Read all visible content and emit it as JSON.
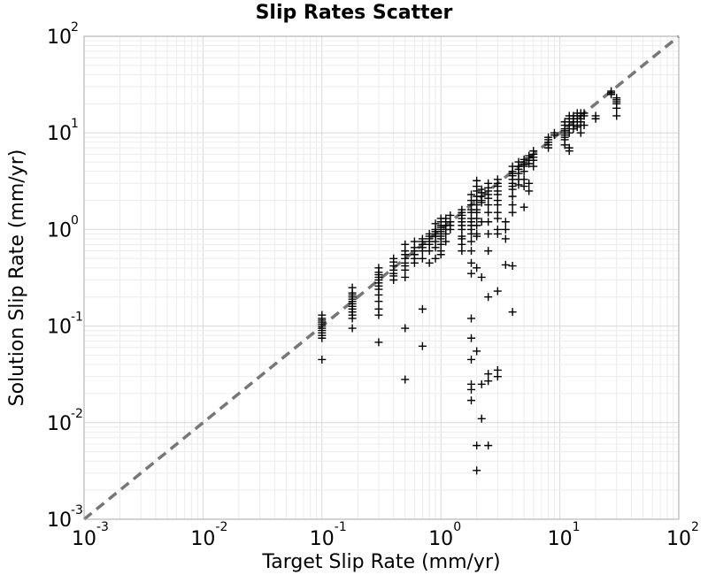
{
  "chart_data": {
    "type": "scatter",
    "title": "Slip Rates Scatter",
    "xlabel": "Target Slip Rate (mm/yr)",
    "ylabel": "Solution Slip Rate (mm/yr)",
    "xscale": "log",
    "yscale": "log",
    "xlim": [
      0.001,
      100
    ],
    "ylim": [
      0.001,
      100
    ],
    "grid": true,
    "x_ticks": [
      {
        "base": "10",
        "exp": "-3"
      },
      {
        "base": "10",
        "exp": "-2"
      },
      {
        "base": "10",
        "exp": "-1"
      },
      {
        "base": "10",
        "exp": "0"
      },
      {
        "base": "10",
        "exp": "1"
      },
      {
        "base": "10",
        "exp": "2"
      }
    ],
    "y_ticks": [
      {
        "base": "10",
        "exp": "-3"
      },
      {
        "base": "10",
        "exp": "-2"
      },
      {
        "base": "10",
        "exp": "-1"
      },
      {
        "base": "10",
        "exp": "0"
      },
      {
        "base": "10",
        "exp": "1"
      },
      {
        "base": "10",
        "exp": "2"
      }
    ],
    "reference_line": {
      "style": "dashed",
      "color": "#777777",
      "from": [
        0.001,
        0.001
      ],
      "to": [
        100,
        100
      ]
    },
    "marker": "+",
    "marker_color": "#000000",
    "points": [
      [
        0.1,
        0.1
      ],
      [
        0.1,
        0.095
      ],
      [
        0.1,
        0.09
      ],
      [
        0.1,
        0.085
      ],
      [
        0.1,
        0.08
      ],
      [
        0.1,
        0.105
      ],
      [
        0.1,
        0.11
      ],
      [
        0.1,
        0.115
      ],
      [
        0.1,
        0.12
      ],
      [
        0.1,
        0.13
      ],
      [
        0.1,
        0.075
      ],
      [
        0.1,
        0.045
      ],
      [
        0.18,
        0.18
      ],
      [
        0.18,
        0.17
      ],
      [
        0.18,
        0.16
      ],
      [
        0.18,
        0.15
      ],
      [
        0.18,
        0.19
      ],
      [
        0.18,
        0.2
      ],
      [
        0.18,
        0.21
      ],
      [
        0.18,
        0.22
      ],
      [
        0.18,
        0.14
      ],
      [
        0.18,
        0.13
      ],
      [
        0.18,
        0.12
      ],
      [
        0.18,
        0.095
      ],
      [
        0.18,
        0.25
      ],
      [
        0.3,
        0.3
      ],
      [
        0.3,
        0.28
      ],
      [
        0.3,
        0.26
      ],
      [
        0.3,
        0.24
      ],
      [
        0.3,
        0.32
      ],
      [
        0.3,
        0.34
      ],
      [
        0.3,
        0.36
      ],
      [
        0.3,
        0.4
      ],
      [
        0.3,
        0.21
      ],
      [
        0.3,
        0.18
      ],
      [
        0.3,
        0.15
      ],
      [
        0.3,
        0.13
      ],
      [
        0.3,
        0.068
      ],
      [
        0.4,
        0.35
      ],
      [
        0.4,
        0.38
      ],
      [
        0.4,
        0.42
      ],
      [
        0.4,
        0.46
      ],
      [
        0.4,
        0.5
      ],
      [
        0.4,
        0.33
      ],
      [
        0.4,
        0.3
      ],
      [
        0.5,
        0.5
      ],
      [
        0.5,
        0.45
      ],
      [
        0.5,
        0.42
      ],
      [
        0.5,
        0.55
      ],
      [
        0.5,
        0.6
      ],
      [
        0.5,
        0.7
      ],
      [
        0.5,
        0.38
      ],
      [
        0.5,
        0.32
      ],
      [
        0.5,
        0.095
      ],
      [
        0.5,
        0.028
      ],
      [
        0.6,
        0.55
      ],
      [
        0.6,
        0.6
      ],
      [
        0.6,
        0.65
      ],
      [
        0.6,
        0.5
      ],
      [
        0.6,
        0.45
      ],
      [
        0.6,
        0.75
      ],
      [
        0.7,
        0.65
      ],
      [
        0.7,
        0.7
      ],
      [
        0.7,
        0.75
      ],
      [
        0.7,
        0.6
      ],
      [
        0.7,
        0.8
      ],
      [
        0.7,
        0.5
      ],
      [
        0.7,
        0.15
      ],
      [
        0.7,
        0.062
      ],
      [
        0.8,
        0.75
      ],
      [
        0.8,
        0.8
      ],
      [
        0.8,
        0.85
      ],
      [
        0.8,
        0.7
      ],
      [
        0.8,
        0.9
      ],
      [
        0.8,
        0.6
      ],
      [
        0.8,
        0.45
      ],
      [
        0.9,
        0.9
      ],
      [
        0.9,
        0.85
      ],
      [
        0.9,
        0.95
      ],
      [
        0.9,
        1.0
      ],
      [
        0.9,
        0.75
      ],
      [
        0.9,
        0.65
      ],
      [
        0.9,
        1.15
      ],
      [
        0.9,
        0.5
      ],
      [
        1.0,
        1.0
      ],
      [
        1.0,
        0.95
      ],
      [
        1.0,
        1.05
      ],
      [
        1.0,
        1.1
      ],
      [
        1.0,
        0.9
      ],
      [
        1.0,
        0.85
      ],
      [
        1.0,
        0.8
      ],
      [
        1.0,
        1.2
      ],
      [
        1.0,
        1.3
      ],
      [
        1.0,
        0.7
      ],
      [
        1.0,
        0.6
      ],
      [
        1.0,
        0.55
      ],
      [
        1.1,
        1.1
      ],
      [
        1.1,
        1.0
      ],
      [
        1.1,
        1.2
      ],
      [
        1.1,
        0.9
      ],
      [
        1.1,
        1.3
      ],
      [
        1.1,
        0.75
      ],
      [
        1.2,
        1.2
      ],
      [
        1.2,
        1.1
      ],
      [
        1.2,
        1.0
      ],
      [
        1.2,
        1.4
      ],
      [
        1.5,
        1.5
      ],
      [
        1.5,
        1.4
      ],
      [
        1.5,
        1.3
      ],
      [
        1.5,
        1.2
      ],
      [
        1.5,
        1.1
      ],
      [
        1.5,
        1.6
      ],
      [
        1.5,
        1.0
      ],
      [
        1.5,
        0.85
      ],
      [
        1.5,
        0.8
      ],
      [
        1.5,
        0.7
      ],
      [
        1.5,
        0.6
      ],
      [
        1.8,
        1.8
      ],
      [
        1.8,
        1.6
      ],
      [
        1.8,
        1.5
      ],
      [
        1.8,
        1.3
      ],
      [
        1.8,
        2.0
      ],
      [
        1.8,
        2.3
      ],
      [
        1.8,
        1.2
      ],
      [
        1.8,
        1.1
      ],
      [
        1.8,
        1.0
      ],
      [
        1.8,
        0.9
      ],
      [
        1.8,
        0.75
      ],
      [
        1.8,
        0.6
      ],
      [
        1.8,
        0.45
      ],
      [
        1.8,
        0.35
      ],
      [
        1.8,
        0.12
      ],
      [
        1.8,
        0.075
      ],
      [
        1.8,
        0.045
      ],
      [
        1.8,
        0.025
      ],
      [
        1.8,
        0.022
      ],
      [
        1.8,
        0.017
      ],
      [
        2.0,
        2.0
      ],
      [
        2.0,
        1.8
      ],
      [
        2.0,
        1.6
      ],
      [
        2.0,
        1.5
      ],
      [
        2.0,
        2.2
      ],
      [
        2.0,
        2.5
      ],
      [
        2.0,
        2.8
      ],
      [
        2.0,
        3.2
      ],
      [
        2.0,
        1.3
      ],
      [
        2.0,
        1.1
      ],
      [
        2.0,
        0.9
      ],
      [
        2.0,
        0.85
      ],
      [
        2.0,
        0.4
      ],
      [
        2.0,
        0.055
      ],
      [
        2.0,
        0.0058
      ],
      [
        2.0,
        0.0032
      ],
      [
        2.2,
        2.2
      ],
      [
        2.2,
        2.0
      ],
      [
        2.2,
        2.4
      ],
      [
        2.2,
        1.9
      ],
      [
        2.2,
        2.6
      ],
      [
        2.2,
        1.2
      ],
      [
        2.2,
        0.32
      ],
      [
        2.2,
        0.025
      ],
      [
        2.2,
        0.011
      ],
      [
        2.5,
        2.5
      ],
      [
        2.5,
        2.3
      ],
      [
        2.5,
        2.1
      ],
      [
        2.5,
        2.7
      ],
      [
        2.5,
        3.0
      ],
      [
        2.5,
        1.8
      ],
      [
        2.5,
        1.5
      ],
      [
        2.5,
        1.2
      ],
      [
        2.5,
        0.9
      ],
      [
        2.5,
        0.6
      ],
      [
        2.5,
        0.2
      ],
      [
        2.5,
        0.027
      ],
      [
        2.5,
        0.0058
      ],
      [
        2.5,
        0.032
      ],
      [
        3.0,
        3.0
      ],
      [
        3.0,
        2.8
      ],
      [
        3.0,
        2.5
      ],
      [
        3.0,
        2.3
      ],
      [
        3.0,
        3.3
      ],
      [
        3.0,
        2.0
      ],
      [
        3.0,
        1.8
      ],
      [
        3.0,
        1.5
      ],
      [
        3.0,
        1.3
      ],
      [
        3.0,
        1.0
      ],
      [
        3.0,
        0.9
      ],
      [
        3.0,
        0.23
      ],
      [
        3.0,
        0.035
      ],
      [
        3.0,
        0.03
      ],
      [
        3.5,
        1.0
      ],
      [
        3.5,
        1.2
      ],
      [
        3.5,
        0.8
      ],
      [
        3.5,
        0.43
      ],
      [
        4.0,
        4.0
      ],
      [
        4.0,
        3.8
      ],
      [
        4.0,
        3.6
      ],
      [
        4.0,
        3.3
      ],
      [
        4.0,
        3.0
      ],
      [
        4.0,
        2.8
      ],
      [
        4.0,
        2.6
      ],
      [
        4.0,
        4.5
      ],
      [
        4.0,
        2.2
      ],
      [
        4.0,
        1.8
      ],
      [
        4.0,
        1.5
      ],
      [
        4.0,
        0.42
      ],
      [
        4.0,
        0.14
      ],
      [
        4.5,
        4.5
      ],
      [
        4.5,
        4.2
      ],
      [
        4.5,
        3.8
      ],
      [
        4.5,
        5.0
      ],
      [
        4.5,
        3.3
      ],
      [
        4.5,
        2.9
      ],
      [
        5.0,
        5.0
      ],
      [
        5.0,
        4.7
      ],
      [
        5.0,
        4.5
      ],
      [
        5.0,
        5.3
      ],
      [
        5.0,
        4.0
      ],
      [
        5.0,
        3.3
      ],
      [
        5.0,
        2.8
      ],
      [
        5.0,
        1.7
      ],
      [
        5.5,
        5.5
      ],
      [
        5.5,
        5.2
      ],
      [
        5.5,
        4.8
      ],
      [
        5.5,
        5.8
      ],
      [
        5.5,
        3.0
      ],
      [
        5.5,
        2.5
      ],
      [
        6.0,
        6.0
      ],
      [
        6.0,
        5.6
      ],
      [
        6.0,
        5.2
      ],
      [
        6.0,
        6.5
      ],
      [
        6.0,
        4.5
      ],
      [
        8.0,
        8.0
      ],
      [
        8.0,
        7.5
      ],
      [
        8.0,
        7.0
      ],
      [
        8.0,
        8.5
      ],
      [
        8.0,
        9.0
      ],
      [
        9.0,
        9.5
      ],
      [
        9.0,
        10.0
      ],
      [
        11.0,
        11.0
      ],
      [
        11.0,
        10.5
      ],
      [
        11.0,
        10.0
      ],
      [
        11.0,
        9.5
      ],
      [
        11.0,
        9.0
      ],
      [
        11.0,
        8.5
      ],
      [
        11.0,
        7.5
      ],
      [
        11.0,
        12.0
      ],
      [
        11.0,
        13.0
      ],
      [
        12.0,
        12.0
      ],
      [
        12.0,
        14.0
      ],
      [
        12.0,
        15.0
      ],
      [
        12.0,
        10.0
      ],
      [
        12.0,
        7.0
      ],
      [
        12.0,
        6.5
      ],
      [
        13.0,
        13.0
      ],
      [
        13.0,
        14.0
      ],
      [
        13.0,
        12.0
      ],
      [
        13.0,
        15.0
      ],
      [
        13.0,
        11.0
      ],
      [
        14.0,
        14.0
      ],
      [
        14.0,
        15.0
      ],
      [
        14.0,
        16.0
      ],
      [
        14.0,
        13.0
      ],
      [
        14.0,
        12.0
      ],
      [
        14.0,
        11.5
      ],
      [
        15.0,
        15.0
      ],
      [
        15.0,
        16.0
      ],
      [
        15.0,
        14.0
      ],
      [
        15.0,
        13.0
      ],
      [
        15.0,
        12.0
      ],
      [
        15.0,
        10.0
      ],
      [
        16.0,
        16.0
      ],
      [
        16.0,
        15.0
      ],
      [
        16.0,
        12.0
      ],
      [
        20.0,
        15.0
      ],
      [
        20.0,
        14.0
      ],
      [
        27.0,
        27.0
      ],
      [
        27.0,
        26.0
      ],
      [
        27.0,
        25.0
      ],
      [
        30.0,
        23.0
      ],
      [
        30.0,
        22.0
      ],
      [
        30.0,
        21.0
      ],
      [
        30.0,
        20.0
      ],
      [
        30.0,
        18.0
      ],
      [
        30.0,
        15.0
      ]
    ]
  }
}
